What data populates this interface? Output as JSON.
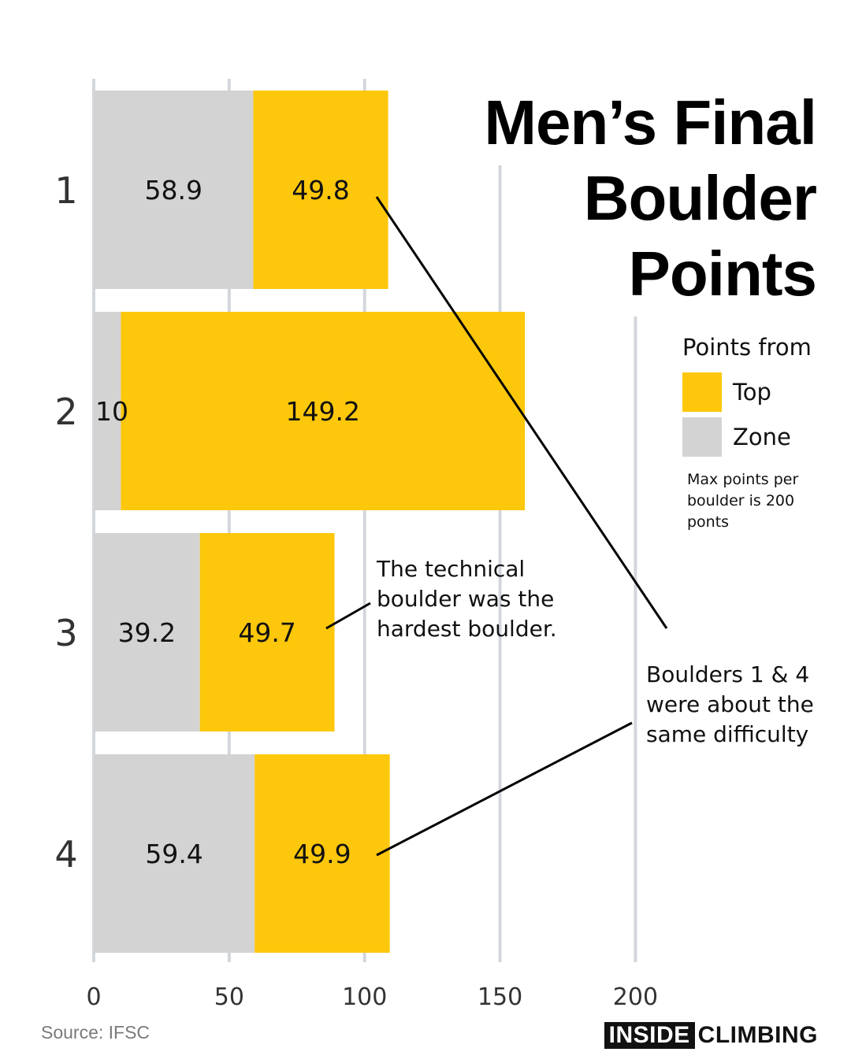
{
  "chart_data": {
    "type": "bar",
    "orientation": "horizontal",
    "stacked": true,
    "title": "Men’s Final Boulder Points",
    "title_lines": [
      "Men’s Final",
      "Boulder",
      "Points"
    ],
    "categories": [
      "1",
      "2",
      "3",
      "4"
    ],
    "series": [
      {
        "name": "Zone",
        "color": "#d3d3d3",
        "values": [
          58.9,
          10,
          39.2,
          59.4
        ],
        "labels": [
          "58.9",
          "10",
          "39.2",
          "59.4"
        ]
      },
      {
        "name": "Top",
        "color": "#fdc70c",
        "values": [
          49.8,
          149.2,
          49.7,
          49.9
        ],
        "labels": [
          "49.8",
          "149.2",
          "49.7",
          "49.9"
        ]
      }
    ],
    "xlim": [
      0,
      200
    ],
    "x_ticks": [
      "0",
      "50",
      "100",
      "150",
      "200"
    ],
    "grid": true,
    "legend_title": "Points from",
    "legend": [
      {
        "label": "Top",
        "color": "#fdc70c"
      },
      {
        "label": "Zone",
        "color": "#d3d3d3"
      }
    ],
    "legend_note": "Max points per boulder is 200 ponts",
    "annotations": [
      {
        "text": "The technical boulder was the hardest boulder."
      },
      {
        "text": "Boulders 1 & 4 were about the same difficulty"
      }
    ]
  },
  "footer": {
    "source": "Source: IFSC",
    "brand_box": "INSIDE",
    "brand_rest": "CLIMBING"
  },
  "colors": {
    "top": "#fdc70c",
    "zone": "#d3d3d3",
    "grid": "#d3d7dc",
    "text": "#111111"
  }
}
